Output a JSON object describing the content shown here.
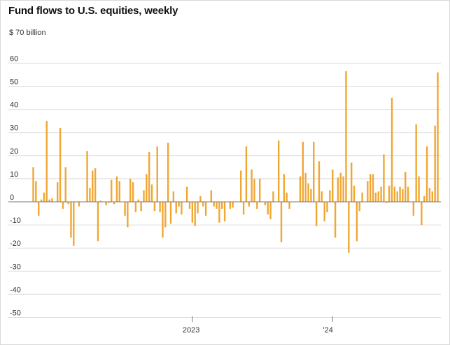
{
  "chart_data": {
    "type": "bar",
    "title": "Fund flows to U.S. equities, weekly",
    "unit_label": "$ 70 billion",
    "xlabel": "",
    "ylabel": "",
    "ylim": [
      -50,
      70
    ],
    "y_ticks": [
      "60",
      "50",
      "40",
      "30",
      "20",
      "10",
      "0",
      "-10",
      "-20",
      "-30",
      "-40",
      "-50"
    ],
    "y_tick_values": [
      60,
      50,
      40,
      30,
      20,
      10,
      0,
      -10,
      -20,
      -30,
      -40,
      -50
    ],
    "x_ticks": [
      {
        "label": "2023",
        "index": 59
      },
      {
        "label": "’24",
        "index": 111
      }
    ],
    "grid": true,
    "legend": "none",
    "bar_color": "#f0a732",
    "values": [
      15,
      9,
      -6,
      1,
      4,
      35,
      1,
      1.5,
      0,
      8.5,
      32,
      -3,
      15,
      -1,
      -15.5,
      -19,
      0,
      -2,
      0,
      0,
      22,
      6,
      13.5,
      14.5,
      -17,
      0.5,
      0,
      -1.5,
      -0.5,
      9.5,
      -1,
      11,
      9,
      0,
      -6,
      -11,
      10,
      8.5,
      -4.5,
      1,
      -4,
      5,
      12,
      21.5,
      7.5,
      -4,
      24,
      -4.5,
      -15.5,
      -11,
      25.5,
      -9.5,
      4.5,
      -5,
      -2,
      -5.5,
      0,
      6.5,
      -3,
      -9,
      -10.5,
      -5,
      2.5,
      -2,
      -6,
      0,
      5,
      -2,
      -3,
      -9,
      -3,
      -8.5,
      0,
      -3,
      -2.5,
      0,
      0,
      13.5,
      -5.5,
      24,
      -2,
      14,
      10,
      -3,
      10,
      0,
      -1.5,
      -5.5,
      -7.5,
      4.5,
      0,
      26.5,
      -17.5,
      12,
      4,
      -3,
      0,
      0,
      0,
      11,
      26,
      12.5,
      8,
      5.5,
      26,
      -10.5,
      17.5,
      4.5,
      -8.5,
      -4.5,
      5,
      14,
      -15.5,
      10.5,
      12.5,
      11,
      56.5,
      -22,
      17,
      7,
      -17,
      -4,
      4,
      0,
      9,
      12,
      12,
      4,
      4.5,
      6.5,
      20.5,
      -0.5,
      7,
      45,
      6.5,
      4.5,
      6.5,
      5.5,
      13,
      6.5,
      0,
      -6,
      33.5,
      11,
      -10,
      2.5,
      24,
      6,
      4.5,
      33,
      56
    ]
  }
}
